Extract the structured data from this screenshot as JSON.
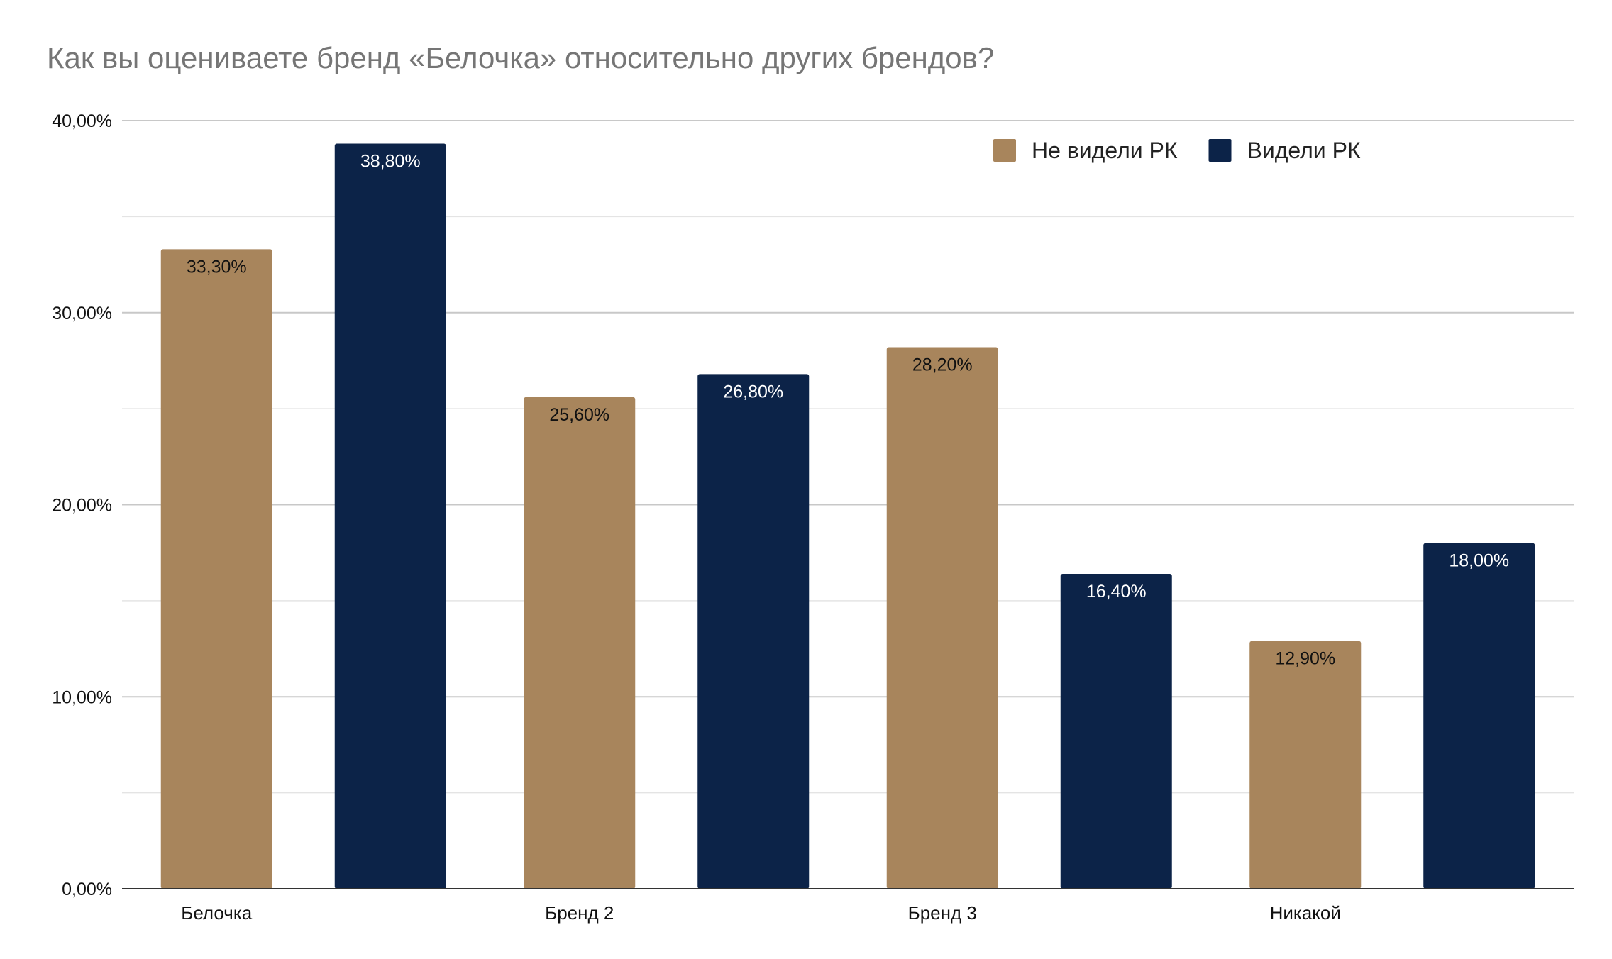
{
  "chart_data": {
    "type": "bar",
    "title": "Как вы оцениваете бренд «Белочка» относительно других брендов?",
    "xlabel": "",
    "ylabel": "",
    "categories": [
      "Белочка",
      "Бренд 2",
      "Бренд 3",
      "Никакой"
    ],
    "series": [
      {
        "name": "Не видели РК",
        "color": "#A8855C",
        "values": [
          33.3,
          25.6,
          28.2,
          12.9
        ],
        "labels": [
          "33,30%",
          "25,60%",
          "28,20%",
          "12,90%"
        ],
        "label_color": "#111111"
      },
      {
        "name": "Видели РК",
        "color": "#0C2348",
        "values": [
          38.8,
          26.8,
          16.4,
          18.0
        ],
        "labels": [
          "38,80%",
          "26,80%",
          "16,40%",
          "18,00%"
        ],
        "label_color": "#ffffff"
      }
    ],
    "ylim": [
      0,
      40
    ],
    "yticks": [
      0,
      10,
      20,
      30,
      40
    ],
    "ytick_labels": [
      "0,00%",
      "10,00%",
      "20,00%",
      "30,00%",
      "40,00%"
    ],
    "grid": true,
    "legend_position": "top-right"
  }
}
